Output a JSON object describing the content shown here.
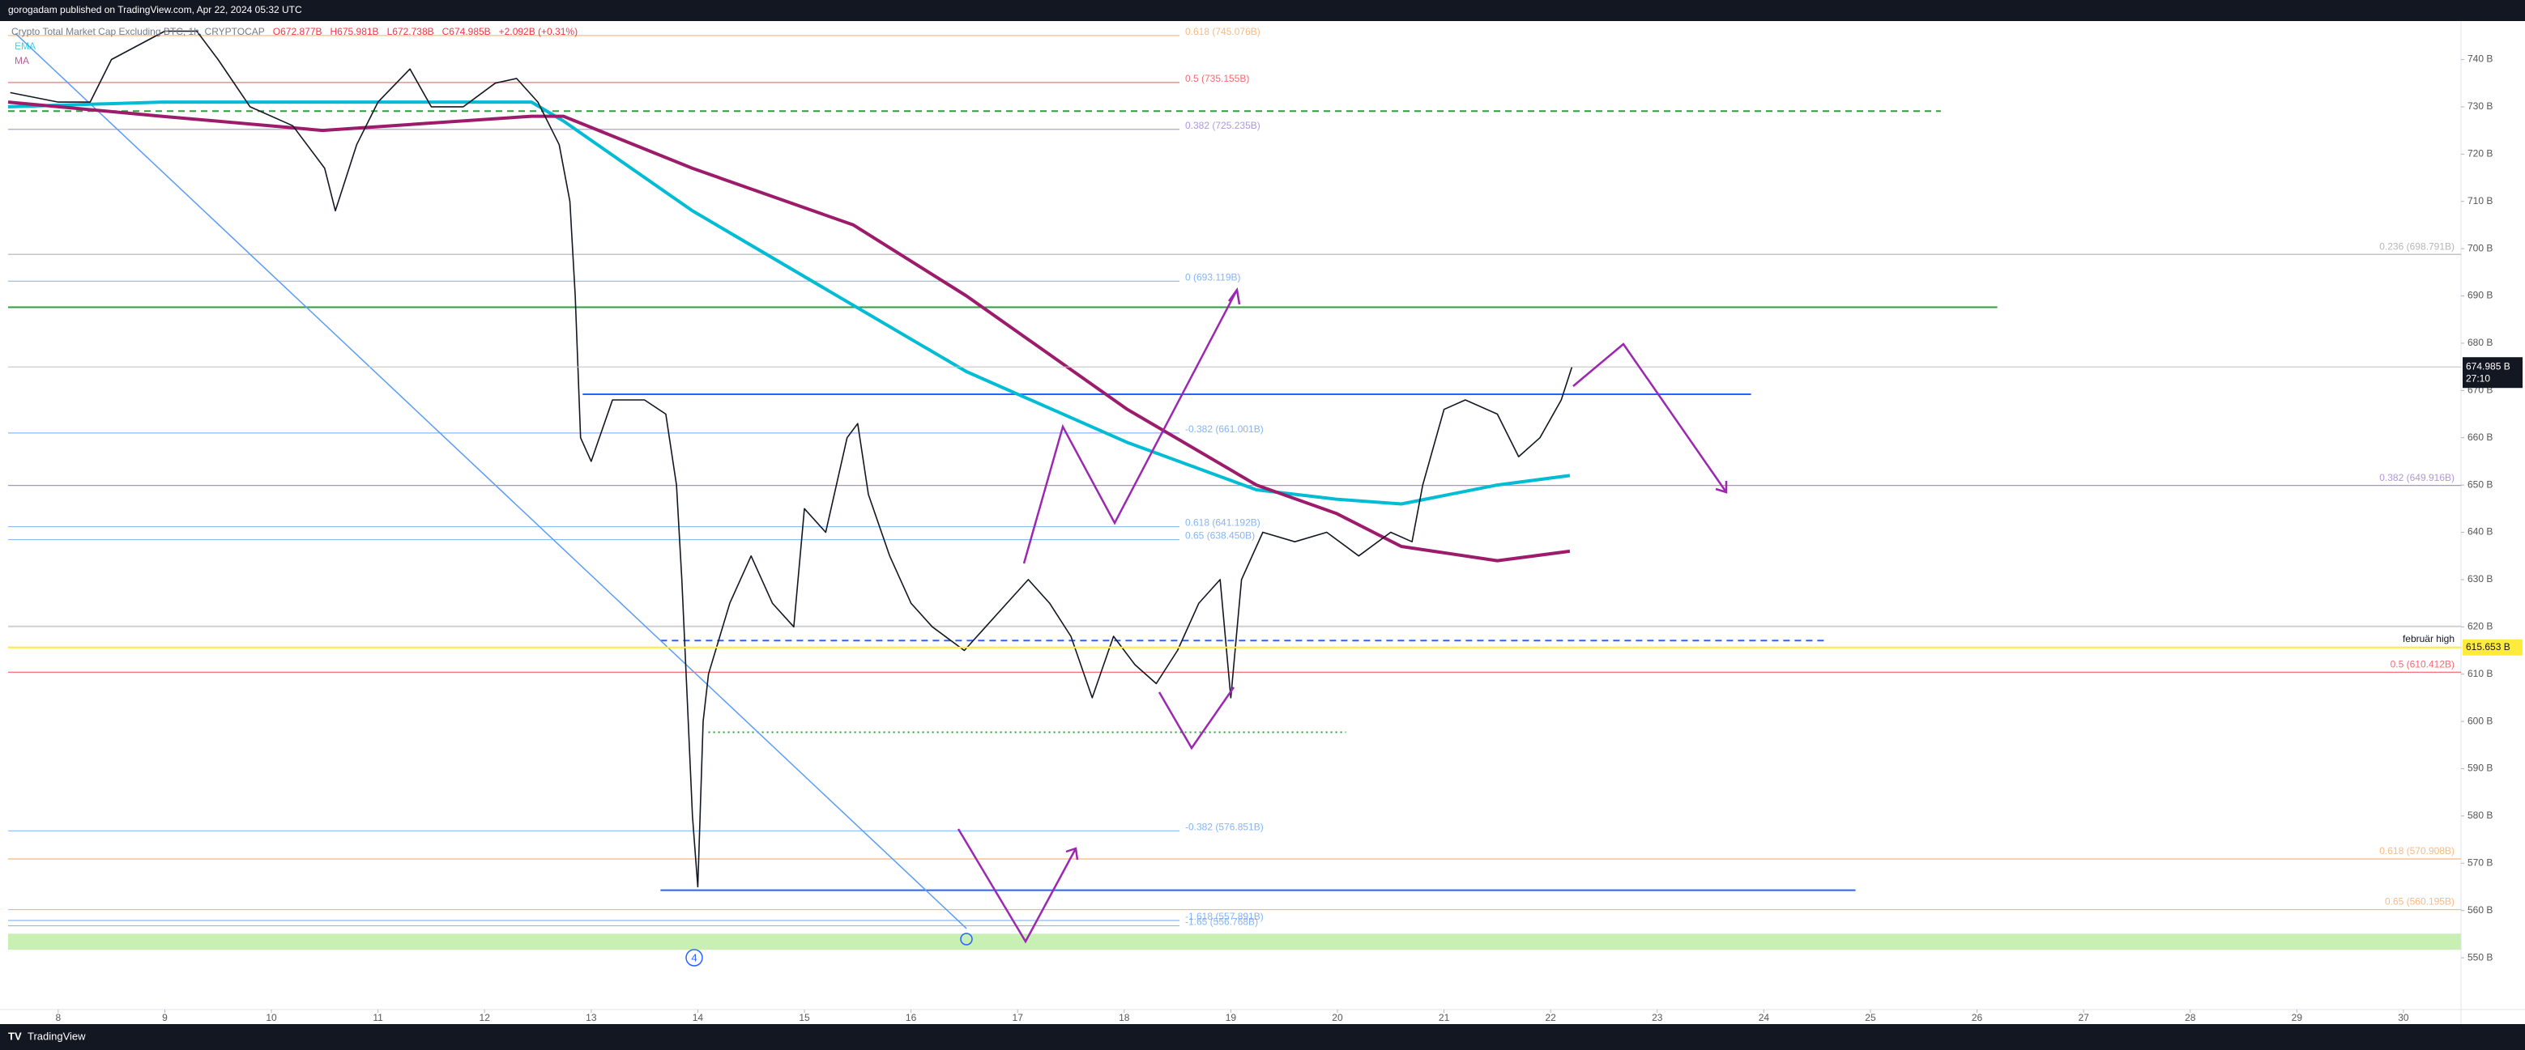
{
  "published": "gorogadam published on TradingView.com, Apr 22, 2024 05:32 UTC",
  "footer": "TradingView",
  "chart_data": {
    "type": "line",
    "title": "Crypto Total Market Cap Excluding BTC, 1h, CRYPTOCAP",
    "ohlc": [
      "O672.877B",
      "H675.981B",
      "L672.738B",
      "C674.985B",
      "+2.092B (+0.31%)"
    ],
    "xlim": [
      7.53,
      30.54
    ],
    "xticks": [
      8,
      9,
      10,
      11,
      12,
      13,
      14,
      15,
      16,
      17,
      18,
      19,
      20,
      21,
      22,
      23,
      24,
      25,
      26,
      27,
      28,
      29,
      30
    ],
    "ylim": [
      539.4,
      747.8
    ],
    "yticks": [
      {
        "value": 550,
        "label": "550 B"
      },
      {
        "value": 560,
        "label": "560 B"
      },
      {
        "value": 570,
        "label": "570 B"
      },
      {
        "value": 580,
        "label": "580 B"
      },
      {
        "value": 590,
        "label": "590 B"
      },
      {
        "value": 600,
        "label": "600 B"
      },
      {
        "value": 610,
        "label": "610 B"
      },
      {
        "value": 620,
        "label": "620 B"
      },
      {
        "value": 630,
        "label": "630 B"
      },
      {
        "value": 640,
        "label": "640 B"
      },
      {
        "value": 650,
        "label": "650 B"
      },
      {
        "value": 660,
        "label": "660 B"
      },
      {
        "value": 670,
        "label": "670 B"
      },
      {
        "value": 680,
        "label": "680 B"
      },
      {
        "value": 690,
        "label": "690 B"
      },
      {
        "value": 700,
        "label": "700 B"
      },
      {
        "value": 710,
        "label": "710 B"
      },
      {
        "value": 720,
        "label": "720 B"
      },
      {
        "value": 730,
        "label": "730 B"
      },
      {
        "value": 740,
        "label": "740 B"
      }
    ],
    "series": [
      {
        "color": "#131722",
        "x": [
          7.55,
          8,
          8.3,
          8.5,
          9,
          9.3,
          9.5,
          9.8,
          10.2,
          10.5,
          10.6,
          10.8,
          11,
          11.3,
          11.5,
          11.8,
          12.1,
          12.3,
          12.5,
          12.7,
          12.8,
          12.85,
          12.9,
          13,
          13.2,
          13.5,
          13.7,
          13.8,
          13.85,
          13.9,
          13.95,
          14,
          14.05,
          14.1,
          14.3,
          14.5,
          14.7,
          14.9,
          15,
          15.2,
          15.4,
          15.5,
          15.6,
          15.8,
          16,
          16.2,
          16.5,
          16.7,
          16.9,
          17.1,
          17.3,
          17.5,
          17.7,
          17.9,
          18.1,
          18.3,
          18.5,
          18.7,
          18.9,
          19,
          19.1,
          19.3,
          19.6,
          19.9,
          20.2,
          20.5,
          20.7,
          20.8,
          21,
          21.2,
          21.5,
          21.7,
          21.9,
          22.1,
          22.2
        ],
        "values": [
          733,
          731,
          731,
          740,
          746,
          746,
          740,
          730,
          726,
          717,
          708,
          722,
          731,
          738,
          730,
          730,
          735,
          736,
          731,
          722,
          710,
          690,
          660,
          655,
          668,
          668,
          665,
          650,
          630,
          605,
          580,
          565,
          600,
          610,
          625,
          635,
          625,
          620,
          645,
          640,
          660,
          663,
          648,
          635,
          625,
          620,
          615,
          620,
          625,
          630,
          625,
          618,
          605,
          618,
          612,
          608,
          615,
          625,
          630,
          605,
          630,
          640,
          638,
          640,
          635,
          640,
          638,
          650,
          666,
          668,
          665,
          656,
          660,
          668,
          674.985
        ]
      },
      {
        "name": "EMA",
        "color": "#00bcd4",
        "x": [
          7.53,
          8.97,
          10.48,
          12.44,
          12.74,
          13.95,
          15.46,
          16.52,
          18.03,
          19.24,
          19.99,
          20.6,
          21.5,
          22.18
        ],
        "values": [
          730,
          731,
          731,
          731,
          727,
          708,
          688,
          674,
          659,
          649,
          647,
          646,
          650,
          652
        ]
      },
      {
        "name": "MA",
        "color": "#9c1c6b",
        "x": [
          7.53,
          8.97,
          10.48,
          12.44,
          12.74,
          13.95,
          15.46,
          16.52,
          18.03,
          19.24,
          19.99,
          20.6,
          21.5,
          22.18
        ],
        "values": [
          731,
          728,
          725,
          728,
          728,
          717,
          705,
          690,
          666,
          650,
          644,
          637,
          634,
          636
        ]
      }
    ],
    "fib_left": [
      {
        "value": 745.076,
        "label": "0.618 (745.076B)",
        "color": "#f7a35c"
      },
      {
        "value": 735.155,
        "label": "0.5 (735.155B)",
        "color": "#f23645"
      },
      {
        "value": 725.235,
        "label": "0.382 (725.235B)",
        "color": "#9575cd"
      },
      {
        "value": 693.119,
        "label": "0 (693.119B)",
        "color": "#5b9cf6"
      },
      {
        "value": 661.001,
        "label": "-0.382 (661.001B)",
        "color": "#5b9cf6"
      },
      {
        "value": 641.192,
        "label": "0.618 (641.192B)",
        "color": "#5b9cf6"
      },
      {
        "value": 638.45,
        "label": "0.65 (638.450B)",
        "color": "#5b9cf6"
      },
      {
        "value": 576.851,
        "label": "-0.382 (576.851B)",
        "color": "#5b9cf6"
      },
      {
        "value": 557.891,
        "label": "-1.618 (557.891B)",
        "color": "#5b9cf6"
      },
      {
        "value": 556.768,
        "label": "-1.65 (556.768B)",
        "color": "#5b9cf6"
      }
    ],
    "fib_right": [
      {
        "value": 698.791,
        "label": "0.236 (698.791B)",
        "color": "#9e9e9e"
      },
      {
        "value": 649.916,
        "label": "0.382 (649.916B)",
        "color": "#9575cd"
      },
      {
        "value": 610.412,
        "label": "0.5 (610.412B)",
        "color": "#f23645"
      },
      {
        "value": 570.908,
        "label": "0.618 (570.908B)",
        "color": "#f7a35c"
      },
      {
        "value": 560.195,
        "label": "0.65 (560.195B)",
        "color": "#f7a35c"
      }
    ],
    "hlines": [
      {
        "value": 729.1,
        "x": [
          7.53,
          25.66
        ],
        "color": "#2e9e3e",
        "style": "dashed"
      },
      {
        "value": 687.6,
        "x": [
          7.53,
          26.19
        ],
        "color": "#2e9e3e",
        "style": "solid"
      },
      {
        "value": 669.2,
        "x": [
          12.92,
          23.88
        ],
        "color": "#2962ff",
        "style": "solid"
      },
      {
        "value": 617.1,
        "x": [
          13.65,
          24.57
        ],
        "color": "#2962ff",
        "style": "dashed"
      },
      {
        "value": 597.7,
        "x": [
          14.1,
          20.08
        ],
        "color": "#2e9e3e",
        "style": "dotted"
      },
      {
        "value": 564.3,
        "x": [
          13.65,
          24.86
        ],
        "color": "#2962ff",
        "style": "solid"
      },
      {
        "value": 620.1,
        "x": [
          7.53,
          30.54
        ],
        "color": "#d0d0d0",
        "style": "solid"
      }
    ],
    "zone": {
      "values": [
        551.7,
        555.1
      ],
      "color": "#c8f0b4"
    },
    "trendline": {
      "x": [
        7.6,
        16.52
      ],
      "values": [
        745.5,
        556.2
      ],
      "color": "#5b9cf6"
    },
    "price_marker": {
      "value": 674.985,
      "label": "674.985 B",
      "countdown": "27:10"
    },
    "level_marker": {
      "value": 615.653,
      "label": "615.653 B",
      "note": "februär high",
      "color": "#ffeb3b"
    },
    "wave_label": "4"
  }
}
